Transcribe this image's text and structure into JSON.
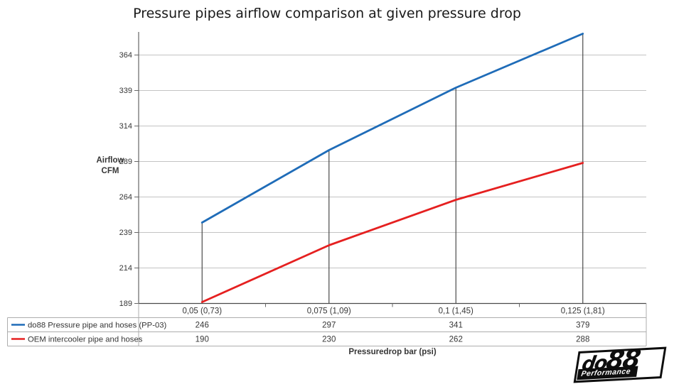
{
  "chart": {
    "title": "Pressure pipes airflow comparison at given pressure drop",
    "y_axis": {
      "label_line1": "Airflow",
      "label_line2": "CFM"
    },
    "x_axis": {
      "label": "Pressuredrop bar (psi)"
    }
  },
  "chart_data": {
    "type": "line",
    "title": "Pressure pipes airflow comparison at given pressure drop",
    "categories": [
      "0,05 (0,73)",
      "0,075 (1,09)",
      "0,1 (1,45)",
      "0,125 (1,81)"
    ],
    "series": [
      {
        "name": "do88 Pressure pipe and hoses (PP-03)",
        "color": "#1F6CB8",
        "values": [
          246,
          297,
          341,
          379
        ]
      },
      {
        "name": "OEM intercooler pipe and hoses",
        "color": "#E52020",
        "values": [
          190,
          230,
          262,
          288
        ]
      }
    ],
    "xlabel": "Pressuredrop bar (psi)",
    "ylabel": "Airflow CFM",
    "ylim": [
      189,
      380
    ],
    "yticks": [
      189,
      214,
      239,
      264,
      289,
      314,
      339,
      364
    ],
    "grid": true,
    "legend_position": "bottom-table",
    "annotations": "vertical drop lines from do88 series points down to x-axis at each category"
  },
  "colors": {
    "gridline": "#C3C3C3",
    "axis": "#666666",
    "drop_line": "#4A4A4A",
    "table_border": "#ADADAD",
    "text": "#363636",
    "title_text": "#1A1A1A"
  },
  "logo": {
    "brand_do": "do",
    "brand_88": "88",
    "tagline": "Performance"
  }
}
